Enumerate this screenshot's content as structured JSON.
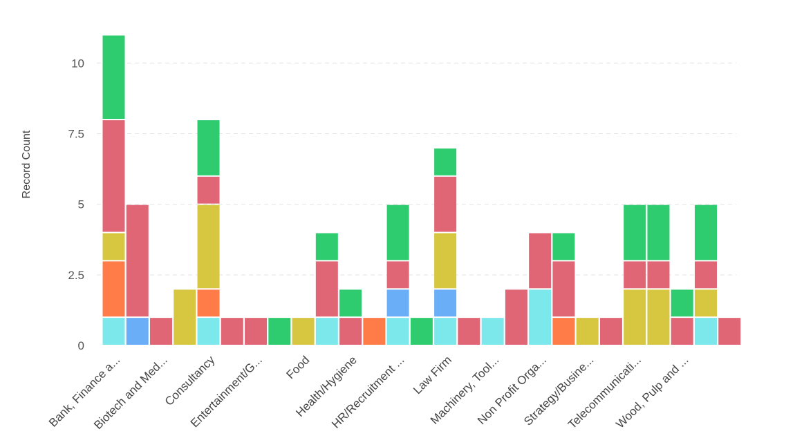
{
  "chart_data": {
    "type": "bar",
    "stacked": true,
    "ylabel": "Record Count",
    "ylim": [
      0,
      11.5
    ],
    "yticks": [
      0,
      2.5,
      5,
      7.5,
      10
    ],
    "ytick_labels": [
      "0",
      "2.5",
      "5",
      "7.5",
      "10"
    ],
    "grid": true,
    "legend": "none",
    "series_colors": [
      "#7de8ec",
      "#6aaef7",
      "#ff7b47",
      "#d6c640",
      "#e06675",
      "#2ecc6e"
    ],
    "series": [
      {
        "values": [
          1,
          0,
          0,
          0,
          1,
          0,
          0,
          0,
          0,
          1,
          0,
          0,
          1,
          0,
          1,
          0,
          1,
          0,
          2,
          0,
          0,
          0,
          0,
          0,
          0,
          1,
          0
        ]
      },
      {
        "values": [
          0,
          1,
          0,
          0,
          0,
          0,
          0,
          0,
          0,
          0,
          0,
          0,
          1,
          0,
          1,
          0,
          0,
          0,
          0,
          0,
          0,
          0,
          0,
          0,
          0,
          0,
          0
        ]
      },
      {
        "values": [
          2,
          0,
          0,
          0,
          1,
          0,
          0,
          0,
          0,
          0,
          0,
          1,
          0,
          0,
          0,
          0,
          0,
          0,
          0,
          1,
          0,
          0,
          0,
          0,
          0,
          0,
          0
        ]
      },
      {
        "values": [
          1,
          0,
          0,
          2,
          3,
          0,
          0,
          0,
          1,
          0,
          0,
          0,
          0,
          0,
          2,
          0,
          0,
          0,
          0,
          0,
          1,
          0,
          2,
          2,
          0,
          1,
          0
        ]
      },
      {
        "values": [
          4,
          4,
          1,
          0,
          1,
          1,
          1,
          0,
          0,
          2,
          1,
          0,
          1,
          0,
          2,
          1,
          0,
          2,
          2,
          2,
          0,
          1,
          1,
          1,
          1,
          1,
          1
        ]
      },
      {
        "values": [
          3,
          0,
          0,
          0,
          2,
          0,
          0,
          1,
          0,
          1,
          1,
          0,
          2,
          1,
          1,
          0,
          0,
          0,
          0,
          1,
          0,
          0,
          2,
          2,
          1,
          2,
          0
        ]
      }
    ],
    "x_labels": [
      {
        "bar": 0,
        "text": "Bank, Finance a..."
      },
      {
        "bar": 2,
        "text": "Biotech and Med..."
      },
      {
        "bar": 4,
        "text": "Consultancy"
      },
      {
        "bar": 6,
        "text": "Entertainment/G..."
      },
      {
        "bar": 8,
        "text": "Food"
      },
      {
        "bar": 10,
        "text": "Health/Hygiene"
      },
      {
        "bar": 12,
        "text": "HR/Recruitment ..."
      },
      {
        "bar": 14,
        "text": "Law Firm"
      },
      {
        "bar": 16,
        "text": "Machinery, Tool..."
      },
      {
        "bar": 18,
        "text": "Non Profit Orga..."
      },
      {
        "bar": 20,
        "text": "Strategy/Busine..."
      },
      {
        "bar": 22,
        "text": "Telecommunicati..."
      },
      {
        "bar": 24,
        "text": "Wood, Pulp and ..."
      }
    ]
  }
}
